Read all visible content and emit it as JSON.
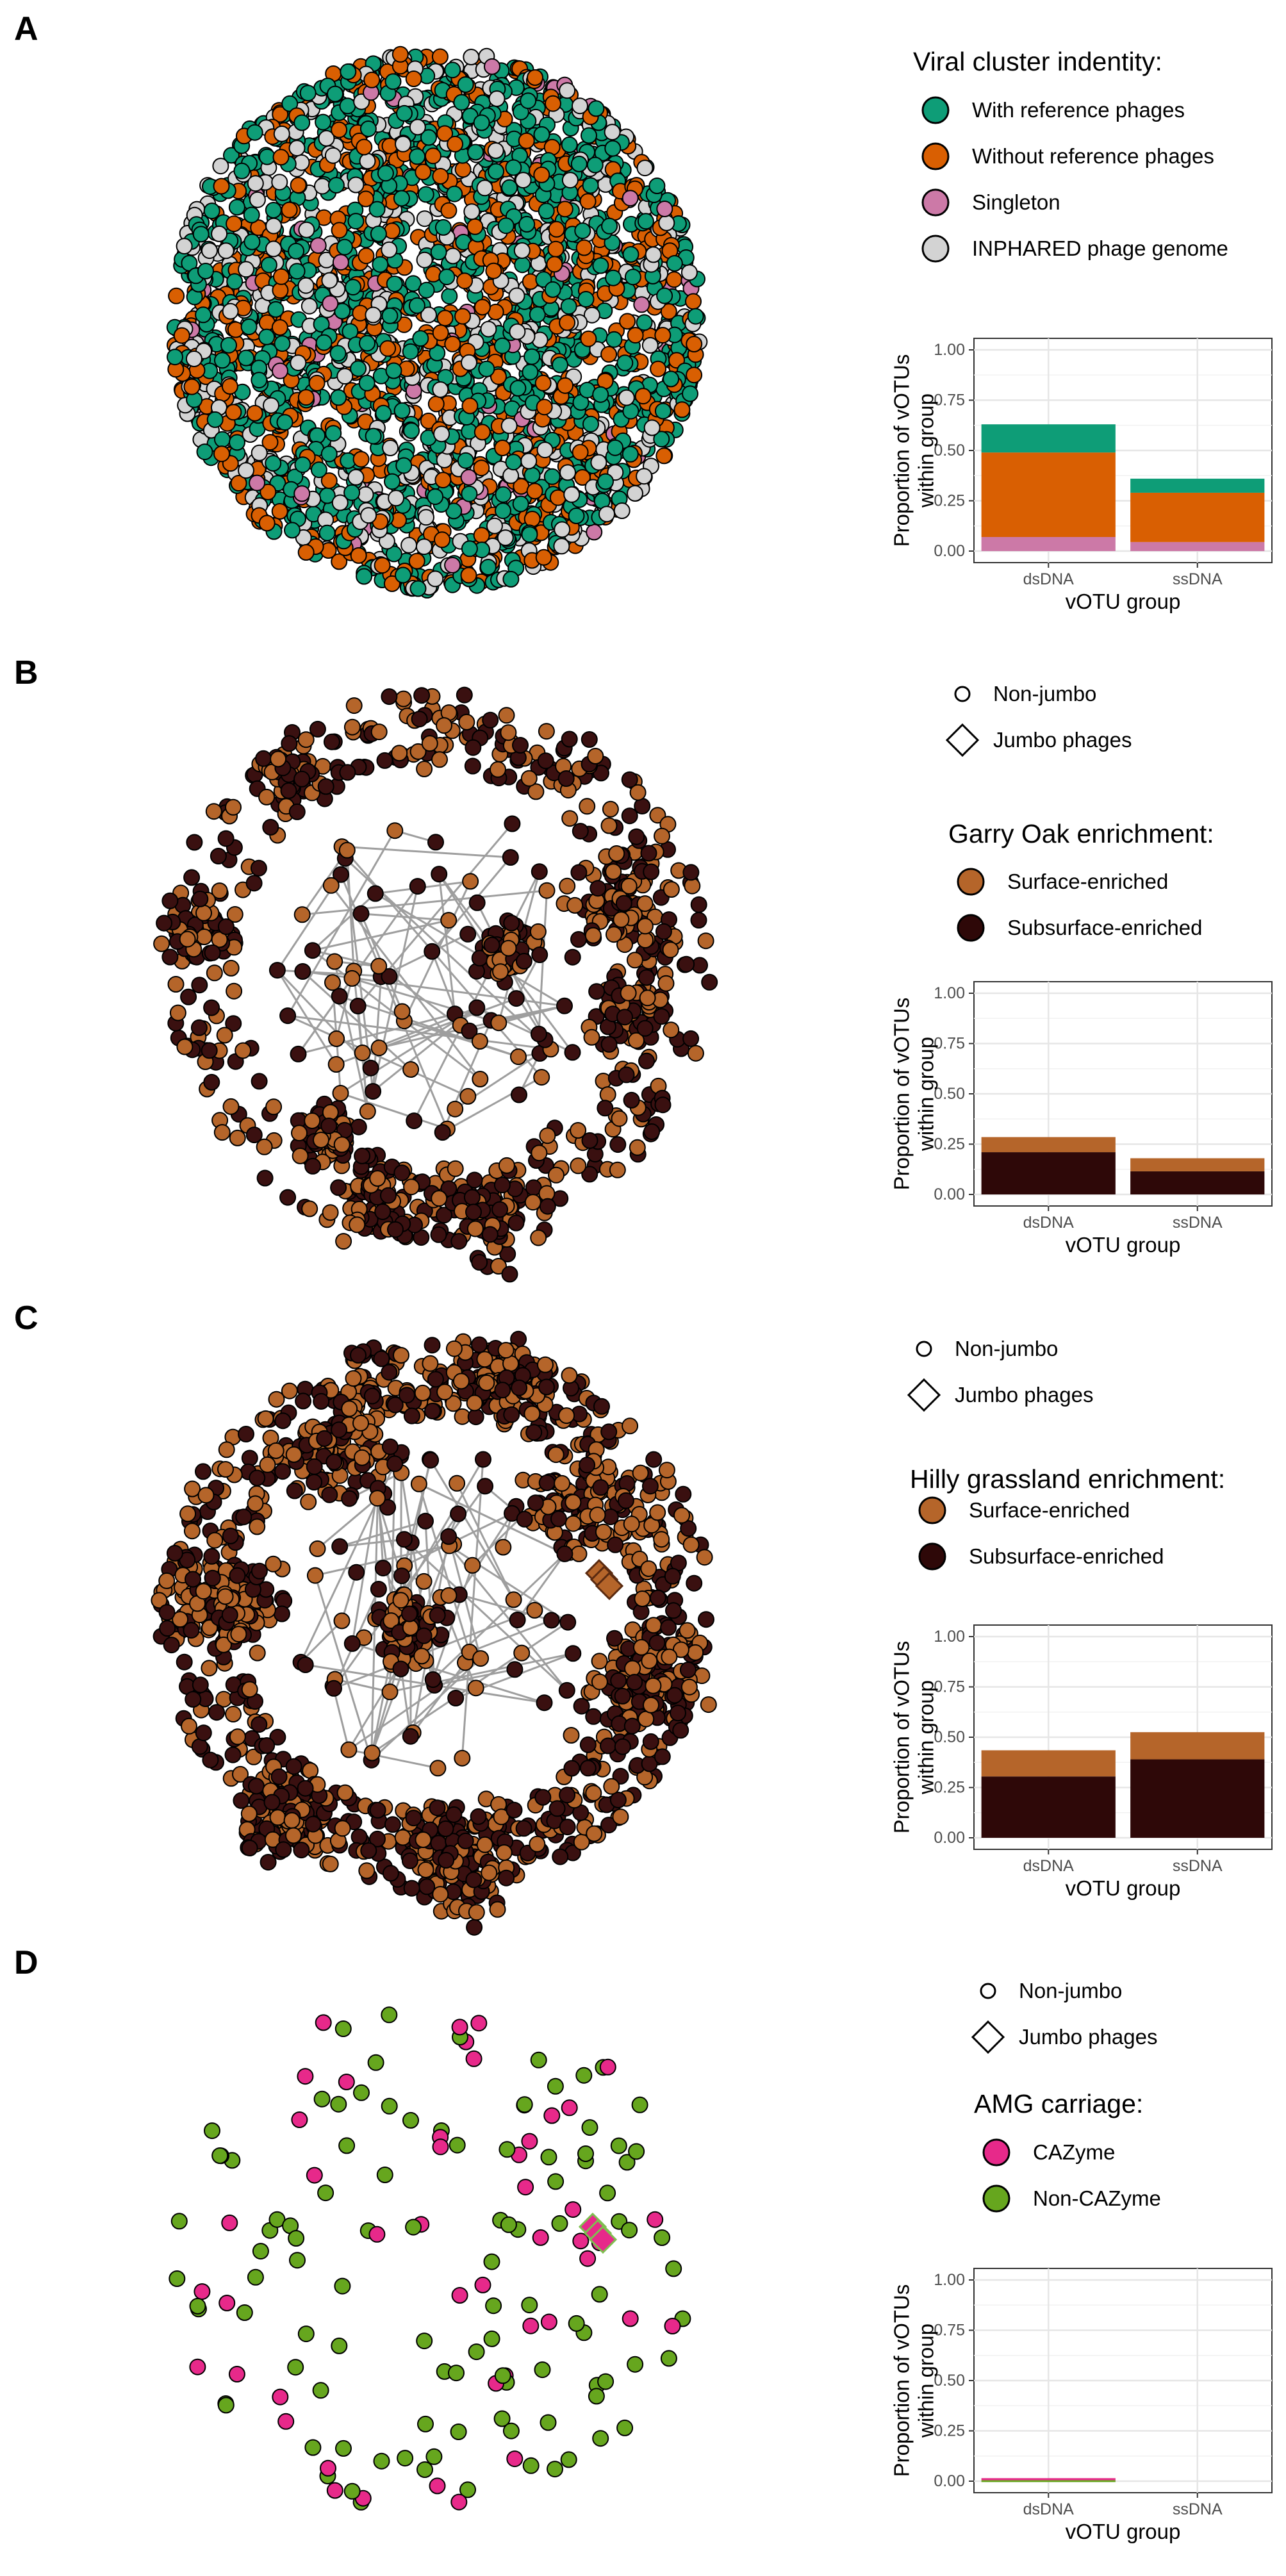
{
  "panels": [
    {
      "letter": "A",
      "shape_legend": null,
      "legend_title": "Viral cluster indentity:",
      "legend": [
        {
          "label": "With reference phages",
          "color": "#0E9D77"
        },
        {
          "label": "Without reference phages",
          "color": "#D95F02"
        },
        {
          "label": "Singleton",
          "color": "#CC79A7"
        },
        {
          "label": "INPHARED phage genome",
          "color": "#D3D3D3"
        }
      ],
      "network_style": "dense-a",
      "point_colors": [
        "#0E9D77",
        "#D95F02",
        "#D3D3D3",
        "#CC79A7"
      ],
      "point_weights": [
        0.46,
        0.3,
        0.21,
        0.03
      ]
    },
    {
      "letter": "B",
      "shape_legend": [
        {
          "label": "Non-jumbo",
          "shape": "circle"
        },
        {
          "label": "Jumbo phages",
          "shape": "diamond"
        }
      ],
      "legend_title": "Garry Oak enrichment:",
      "legend": [
        {
          "label": "Surface-enriched",
          "color": "#B5652A"
        },
        {
          "label": "Subsurface-enriched",
          "color": "#2E0808"
        }
      ],
      "network_style": "ring",
      "point_colors": [
        "#B5652A",
        "#3A1010"
      ],
      "point_weights": [
        0.45,
        0.55
      ]
    },
    {
      "letter": "C",
      "shape_legend": [
        {
          "label": "Non-jumbo",
          "shape": "circle"
        },
        {
          "label": "Jumbo phages",
          "shape": "diamond"
        }
      ],
      "legend_title": "Hilly grassland enrichment:",
      "legend": [
        {
          "label": "Surface-enriched",
          "color": "#B5652A"
        },
        {
          "label": "Subsurface-enriched",
          "color": "#2E0808"
        }
      ],
      "network_style": "dense-c",
      "point_colors": [
        "#B5652A",
        "#3A1010"
      ],
      "point_weights": [
        0.5,
        0.5
      ]
    },
    {
      "letter": "D",
      "shape_legend": [
        {
          "label": "Non-jumbo",
          "shape": "circle"
        },
        {
          "label": "Jumbo phages",
          "shape": "diamond"
        }
      ],
      "legend_title": "AMG carriage:",
      "legend": [
        {
          "label": "CAZyme",
          "color": "#E7298A"
        },
        {
          "label": "Non-CAZyme",
          "color": "#66A61E"
        }
      ],
      "network_style": "sparse",
      "point_colors": [
        "#66A61E",
        "#E7298A"
      ],
      "point_weights": [
        0.72,
        0.28
      ]
    }
  ],
  "chart_data": [
    {
      "panel": "A",
      "type": "bar",
      "stacked": true,
      "categories": [
        "dsDNA",
        "ssDNA"
      ],
      "series": [
        {
          "name": "Singleton",
          "color": "#CC79A7",
          "values": [
            0.07,
            0.045
          ]
        },
        {
          "name": "Without reference phages",
          "color": "#D95F02",
          "values": [
            0.42,
            0.245
          ]
        },
        {
          "name": "With reference phages",
          "color": "#0E9D77",
          "values": [
            0.14,
            0.07
          ]
        }
      ],
      "xlabel": "vOTU group",
      "ylabel": [
        "Proportion of vOTUs",
        "within group"
      ],
      "ylim": [
        0,
        1
      ],
      "yticks": [
        "0.00",
        "0.25",
        "0.50",
        "0.75",
        "1.00"
      ],
      "grid": true
    },
    {
      "panel": "B",
      "type": "bar",
      "stacked": true,
      "categories": [
        "dsDNA",
        "ssDNA"
      ],
      "series": [
        {
          "name": "Subsurface-enriched",
          "color": "#2E0808",
          "values": [
            0.21,
            0.115
          ]
        },
        {
          "name": "Surface-enriched",
          "color": "#B5652A",
          "values": [
            0.075,
            0.065
          ]
        }
      ],
      "xlabel": "vOTU group",
      "ylabel": [
        "Proportion of vOTUs",
        "within group"
      ],
      "ylim": [
        0,
        1
      ],
      "yticks": [
        "0.00",
        "0.25",
        "0.50",
        "0.75",
        "1.00"
      ],
      "grid": true
    },
    {
      "panel": "C",
      "type": "bar",
      "stacked": true,
      "categories": [
        "dsDNA",
        "ssDNA"
      ],
      "series": [
        {
          "name": "Subsurface-enriched",
          "color": "#2E0808",
          "values": [
            0.305,
            0.39
          ]
        },
        {
          "name": "Surface-enriched",
          "color": "#B5652A",
          "values": [
            0.13,
            0.135
          ]
        }
      ],
      "xlabel": "vOTU group",
      "ylabel": [
        "Proportion of vOTUs",
        "within group"
      ],
      "ylim": [
        0,
        1
      ],
      "yticks": [
        "0.00",
        "0.25",
        "0.50",
        "0.75",
        "1.00"
      ],
      "grid": true
    },
    {
      "panel": "D",
      "type": "bar",
      "stacked": true,
      "categories": [
        "dsDNA",
        "ssDNA"
      ],
      "series": [
        {
          "name": "Non-CAZyme",
          "color": "#66A61E",
          "values": [
            0.005,
            0
          ]
        },
        {
          "name": "CAZyme",
          "color": "#E7298A",
          "values": [
            0.01,
            0
          ]
        }
      ],
      "xlabel": "vOTU group",
      "ylabel": [
        "Proportion of vOTUs",
        "within group"
      ],
      "ylim": [
        0,
        1
      ],
      "yticks": [
        "0.00",
        "0.25",
        "0.50",
        "0.75",
        "1.00"
      ],
      "grid": true
    }
  ]
}
